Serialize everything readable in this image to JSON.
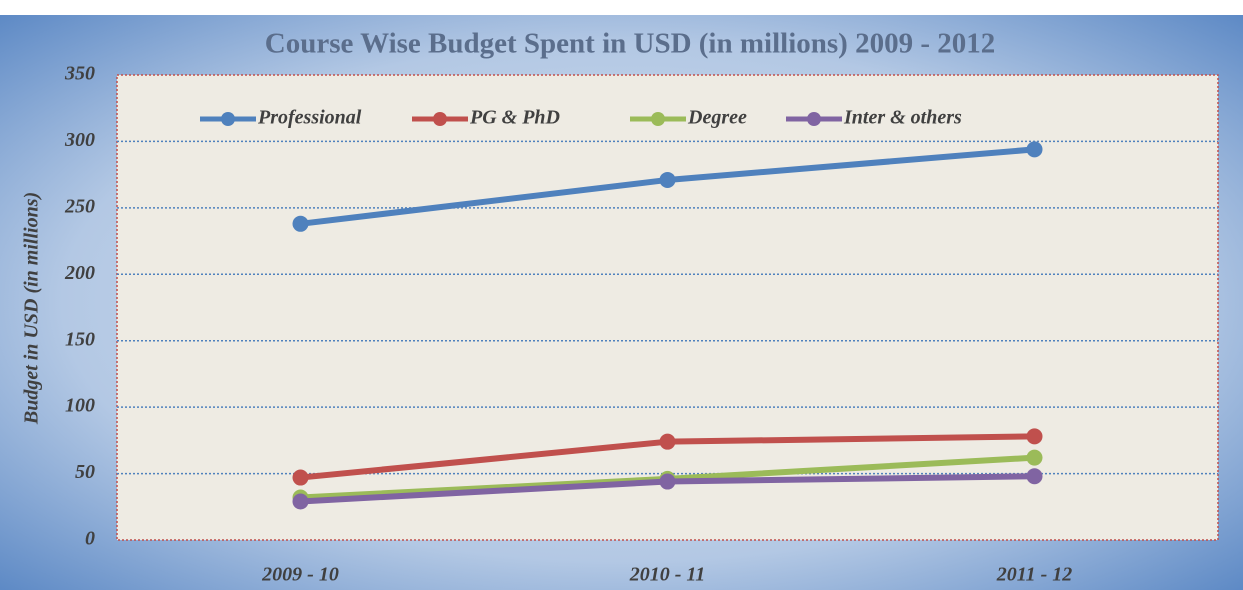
{
  "chart_data": {
    "type": "line",
    "title": "Course Wise Budget Spent in USD (in millions) 2009 - 2012",
    "y_label": "Budget in USD (in millions)",
    "categories": [
      "2009 - 10",
      "2010 - 11",
      "2011 - 12"
    ],
    "series": [
      {
        "name": "Professional",
        "color": "#4f81bd",
        "values": [
          238,
          271,
          294
        ]
      },
      {
        "name": "PG & PhD",
        "color": "#c0504d",
        "values": [
          47,
          74,
          78
        ]
      },
      {
        "name": "Degree",
        "color": "#9bbb59",
        "values": [
          32,
          46,
          62
        ]
      },
      {
        "name": "Inter & others",
        "color": "#8064a2",
        "values": [
          29,
          44,
          48
        ]
      }
    ],
    "ylim": [
      0,
      350
    ],
    "yticks": [
      0,
      50,
      100,
      150,
      200,
      250,
      300,
      350
    ],
    "grid": true,
    "legend": "top"
  }
}
